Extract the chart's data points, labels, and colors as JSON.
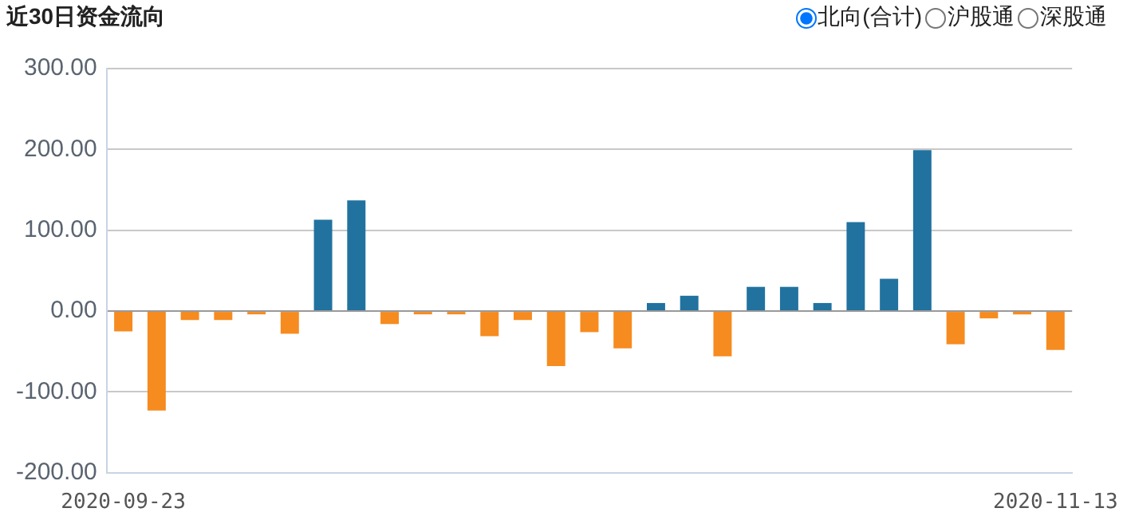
{
  "chart_data": {
    "type": "bar",
    "title": "近30日资金流向",
    "categories": [
      "2020-09-23",
      null,
      null,
      null,
      null,
      null,
      null,
      null,
      null,
      null,
      null,
      null,
      null,
      null,
      null,
      null,
      null,
      null,
      null,
      null,
      null,
      null,
      null,
      null,
      null,
      null,
      null,
      null,
      "2020-11-13"
    ],
    "values": [
      -25,
      -123,
      -11,
      -11,
      -4,
      -28,
      113,
      137,
      -16,
      -4,
      -4,
      -31,
      -11,
      -68,
      -26,
      -46,
      10,
      19,
      -56,
      30,
      30,
      10,
      110,
      40,
      199,
      -41,
      -9,
      -4,
      -48
    ],
    "colors": [
      "#f68b1f",
      "#f68b1f",
      "#f68b1f",
      "#f68b1f",
      "#f68b1f",
      "#f68b1f",
      "#21729f",
      "#21729f",
      "#f68b1f",
      "#f68b1f",
      "#f68b1f",
      "#f68b1f",
      "#f68b1f",
      "#f68b1f",
      "#f68b1f",
      "#f68b1f",
      "#21729f",
      "#21729f",
      "#f68b1f",
      "#21729f",
      "#21729f",
      "#21729f",
      "#21729f",
      "#21729f",
      "#21729f",
      "#f68b1f",
      "#f68b1f",
      "#f68b1f",
      "#f68b1f"
    ],
    "ylim": [
      -200,
      300
    ],
    "yticks": [
      {
        "value": -200,
        "label": "-200.00"
      },
      {
        "value": -100,
        "label": "-100.00"
      },
      {
        "value": 0,
        "label": "0.00"
      },
      {
        "value": 100,
        "label": "100.00"
      },
      {
        "value": 200,
        "label": "200.00"
      },
      {
        "value": 300,
        "label": "300.00"
      }
    ],
    "grid": "y",
    "legend": false,
    "annotations": [
      "北向(合计)",
      "沪股通",
      "深股通"
    ]
  }
}
